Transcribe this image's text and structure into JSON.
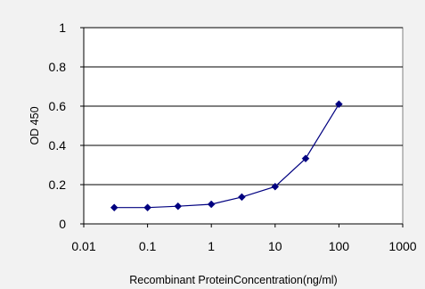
{
  "chart_data": {
    "type": "line",
    "title": "",
    "xlabel": "Recombinant ProteinConcentration(ng/ml)",
    "ylabel": "OD 450",
    "x_scale": "log",
    "xlim": [
      0.01,
      1000
    ],
    "ylim": [
      0,
      1
    ],
    "x_tick_labels": [
      "0.01",
      "0.1",
      "1",
      "10",
      "100",
      "1000"
    ],
    "y_tick_labels": [
      "0",
      "0.2",
      "0.4",
      "0.6",
      "0.8",
      "1"
    ],
    "x_ticks": [
      0.01,
      0.1,
      1,
      10,
      100,
      1000
    ],
    "y_ticks": [
      0,
      0.2,
      0.4,
      0.6,
      0.8,
      1
    ],
    "grid": "horizontal",
    "legend": "none",
    "series": [
      {
        "x": [
          0.03,
          0.1,
          0.3,
          1,
          3,
          10,
          30,
          100
        ],
        "y": [
          0.083,
          0.083,
          0.09,
          0.1,
          0.137,
          0.19,
          0.333,
          0.61
        ],
        "color": "#000080",
        "marker": "diamond"
      }
    ],
    "colors": {
      "background": "#f2f2f2",
      "plot_area": "#ffffff",
      "gridline": "#000000",
      "series": "#000080"
    }
  }
}
